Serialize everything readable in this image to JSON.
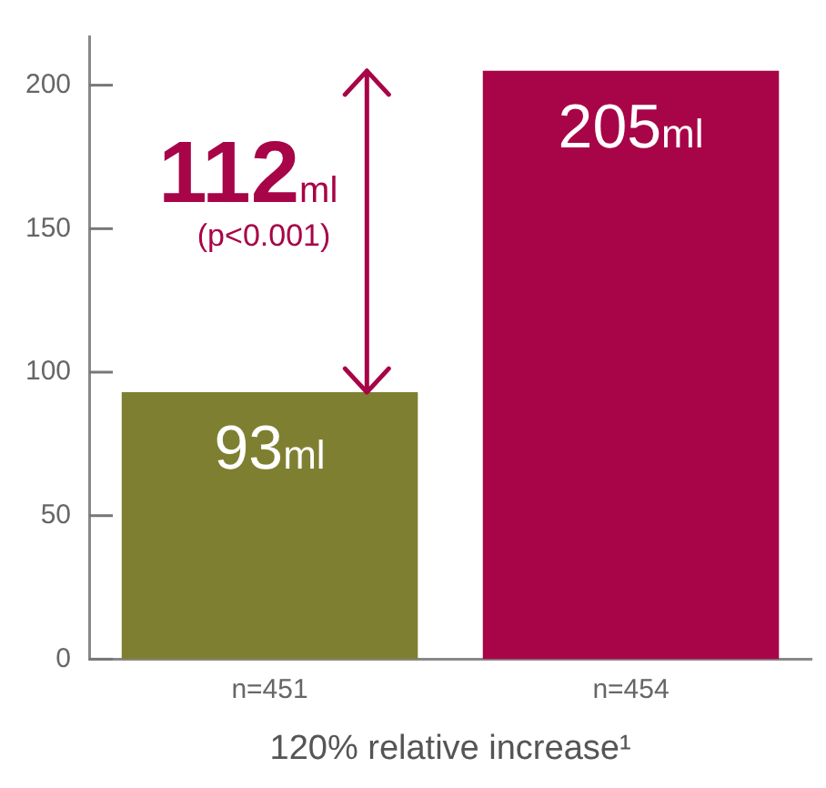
{
  "chart_data": {
    "type": "bar",
    "categories": [
      "n=451",
      "n=454"
    ],
    "values": [
      93,
      205
    ],
    "colors": [
      "#7f7f32",
      "#a80448"
    ],
    "value_labels": [
      "93ml",
      "205ml"
    ],
    "ylim": [
      0,
      217
    ],
    "yticks": [
      0,
      50,
      100,
      150,
      200
    ],
    "grid": false,
    "legend": false,
    "xlabel": "120% relative increase¹",
    "annotations": [
      "112ml",
      "(p<0.001)"
    ]
  }
}
